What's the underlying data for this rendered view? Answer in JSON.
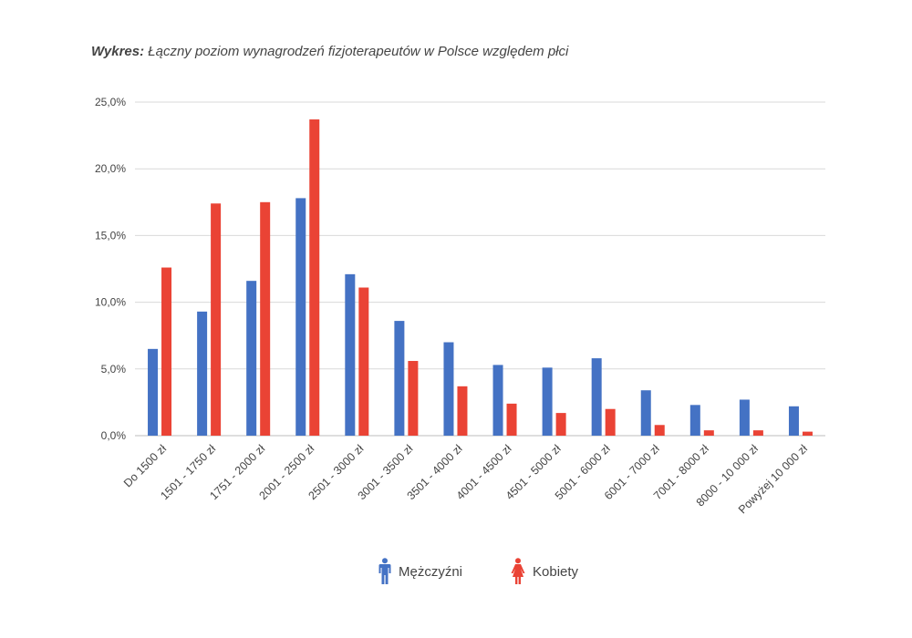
{
  "title": {
    "prefix": "Wykres:",
    "text": "Łączny poziom wynagrodzeń fizjoterapeutów w Polsce względem płci"
  },
  "chart_data": {
    "type": "bar",
    "categories": [
      "Do 1500 zł",
      "1501 - 1750 zł",
      "1751 - 2000 zł",
      "2001 - 2500 zł",
      "2501 - 3000 zł",
      "3001 - 3500 zł",
      "3501 - 4000 zł",
      "4001 - 4500 zł",
      "4501 - 5000 zł",
      "5001 - 6000 zł",
      "6001 - 7000 zł",
      "7001 - 8000 zł",
      "8000 - 10 000 zł",
      "Powyżej 10 000 zł"
    ],
    "series": [
      {
        "name": "Mężczyźni",
        "color": "#4472c4",
        "icon": "male-icon",
        "values": [
          6.5,
          9.3,
          11.6,
          17.8,
          12.1,
          8.6,
          7.0,
          5.3,
          5.1,
          5.8,
          3.4,
          2.3,
          2.7,
          2.2
        ]
      },
      {
        "name": "Kobiety",
        "color": "#ea4335",
        "icon": "female-icon",
        "values": [
          12.6,
          17.4,
          17.5,
          23.7,
          11.1,
          5.6,
          3.7,
          2.4,
          1.7,
          2.0,
          0.8,
          0.4,
          0.4,
          0.3
        ]
      }
    ],
    "y_ticks": [
      "0,0%",
      "5,0%",
      "10,0%",
      "15,0%",
      "20,0%",
      "25,0%"
    ],
    "ylim": [
      0,
      25
    ],
    "grid": true,
    "legend_position": "bottom-center"
  }
}
